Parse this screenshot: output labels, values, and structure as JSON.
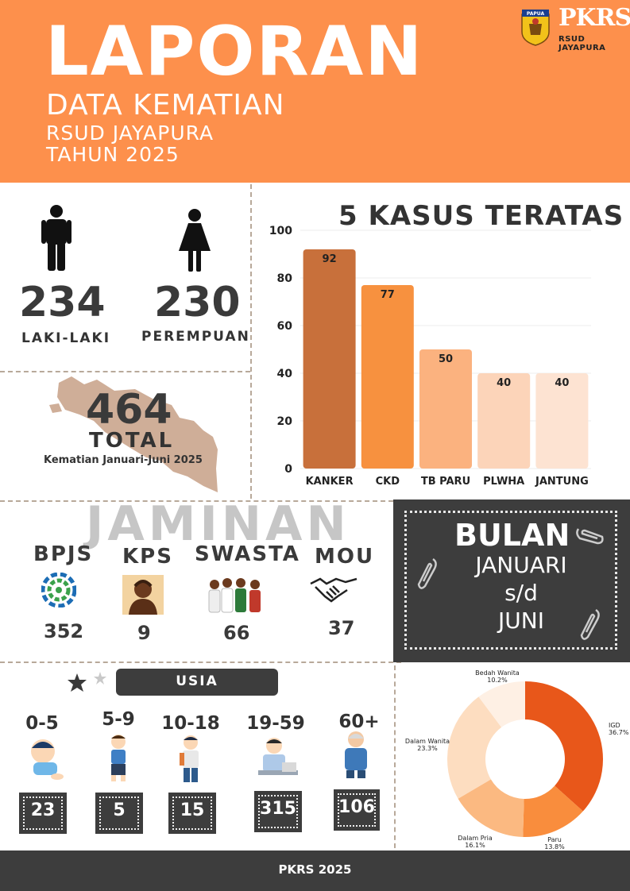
{
  "header": {
    "title": "LAPORAN",
    "subtitle1": "DATA KEMATIAN",
    "subtitle2": "RSUD JAYAPURA",
    "subtitle3": "TAHUN 2025",
    "logo_left_text": "PAPUA",
    "logo_right_text": "PKRS",
    "logo_right_sub": "RSUD JAYAPURA",
    "bg_color": "#fd904c"
  },
  "gender": {
    "male": {
      "value": "234",
      "label": "LAKI-LAKI",
      "icon": "man-icon"
    },
    "female": {
      "value": "230",
      "label": "PEREMPUAN",
      "icon": "woman-icon"
    }
  },
  "total": {
    "value": "464",
    "label": "TOTAL",
    "caption": "Kematian Januari-Juni 2025",
    "icon": "papua-map-icon"
  },
  "chart_data": [
    {
      "type": "bar",
      "title": "5 KASUS TERATAS",
      "categories": [
        "KANKER",
        "CKD",
        "TB PARU",
        "PLWHA",
        "JANTUNG"
      ],
      "values": [
        92,
        77,
        50,
        40,
        40
      ],
      "colors": [
        "#c8703b",
        "#f7913f",
        "#fbb27f",
        "#fcd4b9",
        "#fde3d2"
      ],
      "ylim": [
        0,
        100
      ],
      "yticks": [
        0,
        20,
        40,
        60,
        80,
        100
      ],
      "grid": true
    },
    {
      "type": "pie",
      "categories": [
        "IGD",
        "Paru",
        "Dalam Pria",
        "Dalam Wanita",
        "Bedah Wanita"
      ],
      "values": [
        36.7,
        13.8,
        16.1,
        23.3,
        10.2
      ],
      "labels": [
        "IGD\n36.7%",
        "Paru\n13.8%",
        "Dalam Pria\n16.1%",
        "Dalam Wanita\n23.3%",
        "Bedah Wanita\n10.2%"
      ],
      "colors": [
        "#e8571a",
        "#f98d3d",
        "#fbb981",
        "#fdddc0",
        "#fef0e4"
      ],
      "donut": true
    }
  ],
  "jaminan": {
    "title": "JAMINAN",
    "items": [
      {
        "label": "BPJS",
        "value": "352",
        "icon": "bpjs-logo-icon"
      },
      {
        "label": "KPS",
        "value": "9",
        "icon": "papuan-person-icon"
      },
      {
        "label": "SWASTA",
        "value": "66",
        "icon": "group-people-icon"
      },
      {
        "label": "MOU",
        "value": "37",
        "icon": "handshake-icon"
      }
    ]
  },
  "bulan": {
    "title": "BULAN",
    "line1": "JANUARI",
    "line2": "s/d",
    "line3": "JUNI"
  },
  "usia": {
    "title": "USIA",
    "groups": [
      {
        "range": "0-5",
        "value": "23",
        "icon": "baby-icon"
      },
      {
        "range": "5-9",
        "value": "5",
        "icon": "child-icon"
      },
      {
        "range": "10-18",
        "value": "15",
        "icon": "teen-icon"
      },
      {
        "range": "19-59",
        "value": "315",
        "icon": "adult-icon"
      },
      {
        "range": "60+",
        "value": "106",
        "icon": "elderly-icon"
      }
    ]
  },
  "footer": {
    "text": "PKRS 2025"
  }
}
